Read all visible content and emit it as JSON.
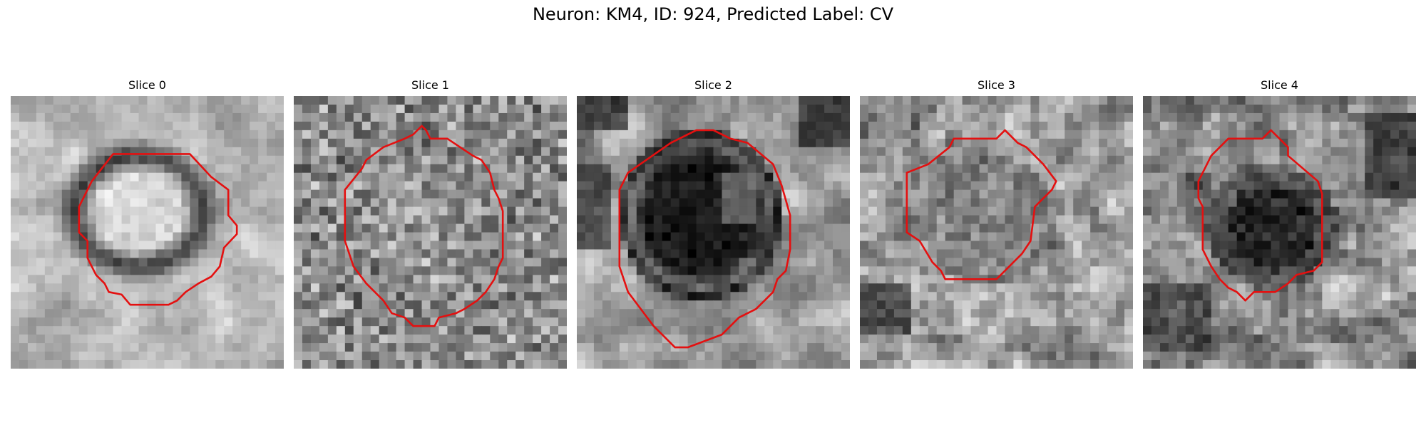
{
  "figure": {
    "suptitle": "Neuron: KM4, ID: 924, Predicted Label: CV",
    "contour_color": "#e41010",
    "colormap": "gray",
    "panels": [
      {
        "title": "Slice 0",
        "center_brightness": "bright",
        "ring": "dark",
        "background": "light"
      },
      {
        "title": "Slice 1",
        "center_brightness": "medium",
        "ring": "faint",
        "background": "noisy"
      },
      {
        "title": "Slice 2",
        "center_brightness": "dark",
        "ring": "dark",
        "background": "mixed"
      },
      {
        "title": "Slice 3",
        "center_brightness": "medium",
        "ring": "faint",
        "background": "mixed"
      },
      {
        "title": "Slice 4",
        "center_brightness": "dark",
        "ring": "faint",
        "background": "mixed"
      }
    ]
  }
}
